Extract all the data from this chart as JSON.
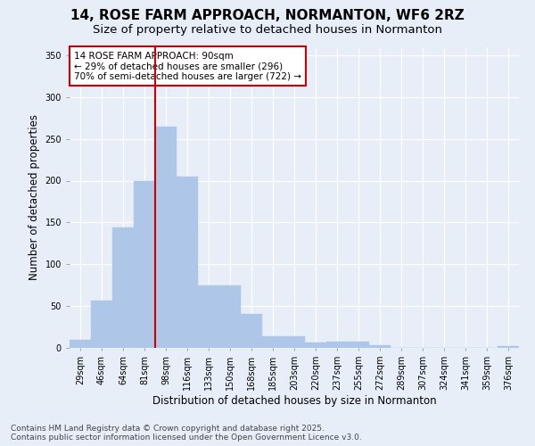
{
  "title_line1": "14, ROSE FARM APPROACH, NORMANTON, WF6 2RZ",
  "title_line2": "Size of property relative to detached houses in Normanton",
  "xlabel": "Distribution of detached houses by size in Normanton",
  "ylabel": "Number of detached properties",
  "categories": [
    "29sqm",
    "46sqm",
    "64sqm",
    "81sqm",
    "98sqm",
    "116sqm",
    "133sqm",
    "150sqm",
    "168sqm",
    "185sqm",
    "203sqm",
    "220sqm",
    "237sqm",
    "255sqm",
    "272sqm",
    "289sqm",
    "307sqm",
    "324sqm",
    "341sqm",
    "359sqm",
    "376sqm"
  ],
  "values": [
    10,
    57,
    144,
    200,
    265,
    205,
    75,
    75,
    41,
    14,
    14,
    6,
    7,
    7,
    3,
    0,
    0,
    0,
    0,
    0,
    2
  ],
  "bar_color": "#aec6e8",
  "bar_edgecolor": "#aec6e8",
  "vline_color": "#cc0000",
  "vline_x_index": 3.5,
  "annotation_text": "14 ROSE FARM APPROACH: 90sqm\n← 29% of detached houses are smaller (296)\n70% of semi-detached houses are larger (722) →",
  "annotation_box_edgecolor": "#cc0000",
  "annotation_box_facecolor": "#ffffff",
  "ylim": [
    0,
    360
  ],
  "yticks": [
    0,
    50,
    100,
    150,
    200,
    250,
    300,
    350
  ],
  "background_color": "#e8eef7",
  "grid_color": "#ffffff",
  "title_fontsize": 11,
  "subtitle_fontsize": 9.5,
  "axis_label_fontsize": 8.5,
  "tick_fontsize": 7,
  "annotation_fontsize": 7.5,
  "footer_text": "Contains HM Land Registry data © Crown copyright and database right 2025.\nContains public sector information licensed under the Open Government Licence v3.0.",
  "footer_fontsize": 6.5
}
